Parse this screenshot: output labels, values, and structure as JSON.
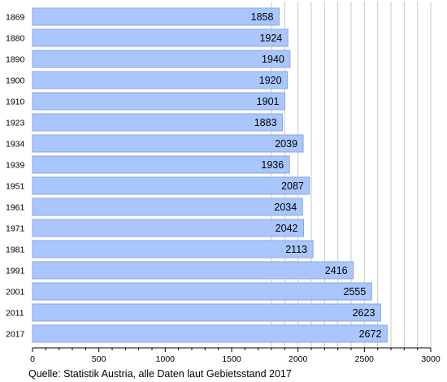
{
  "chart_data": {
    "type": "bar",
    "orientation": "horizontal",
    "categories": [
      "1869",
      "1880",
      "1890",
      "1900",
      "1910",
      "1923",
      "1934",
      "1939",
      "1951",
      "1961",
      "1971",
      "1981",
      "1991",
      "2001",
      "2011",
      "2017"
    ],
    "values": [
      1858,
      1924,
      1940,
      1920,
      1901,
      1883,
      2039,
      1936,
      2087,
      2034,
      2042,
      2113,
      2416,
      2555,
      2623,
      2672
    ],
    "xlim": [
      0,
      3000
    ],
    "x_ticks": [
      "0",
      "500",
      "1000",
      "1500",
      "2000",
      "2500",
      "3000"
    ],
    "grid": "vertical minor lines from 1800 to 3000",
    "bar_color": "#aac6ff",
    "bar_border_color": "#8aa6e0",
    "source": "Quelle: Statistik Austria, alle Daten laut Gebietsstand 2017"
  }
}
